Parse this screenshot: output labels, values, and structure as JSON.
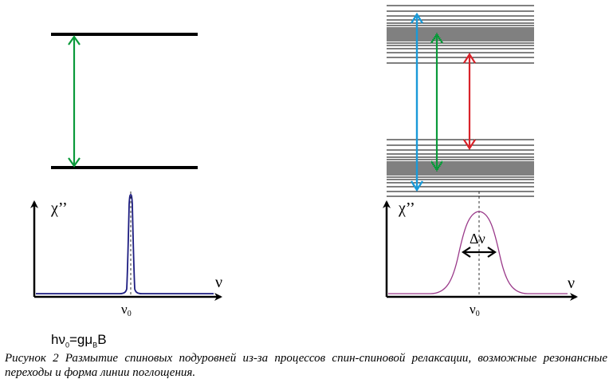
{
  "left_panel": {
    "y_label": "χ’’",
    "x_label": "ν",
    "peak_label_base": "ν",
    "peak_label_sub": "0"
  },
  "right_panel": {
    "y_label": "χ’’",
    "x_label": "ν",
    "peak_label_base": "ν",
    "peak_label_sub": "0",
    "width_label": "Δν"
  },
  "formula": {
    "h": "h",
    "nu": "ν",
    "nu_sub": "0",
    "eq": "=g",
    "mu": "μ",
    "mu_sub": "B",
    "b": "B"
  },
  "caption": {
    "text": "Рисунок 2 Размытие спиновых подуровней из-за процессов спин-спиновой релаксации, возможные резонансные переходы и форма линии поглощения."
  },
  "colors": {
    "green": "#0a9a3a",
    "blue": "#1a9ad8",
    "red": "#d8232a",
    "narrow_line": "#1c1c80",
    "broad_line": "#9a3a8a"
  }
}
